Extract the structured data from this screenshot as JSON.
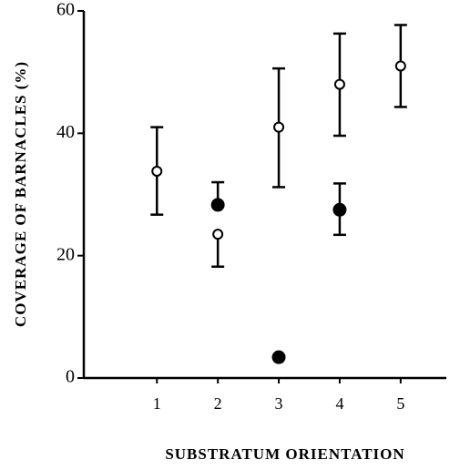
{
  "chart_data": {
    "type": "scatter",
    "xlabel": "SUBSTRATUM ORIENTATION",
    "ylabel": "COVERAGE OF BARNACLES (%)",
    "xlim": [
      -0.2,
      5.75
    ],
    "xticks": [
      1,
      2,
      3,
      4,
      5
    ],
    "ylim": [
      0,
      60
    ],
    "yticks": [
      0,
      20,
      40,
      60
    ],
    "series": [
      {
        "marker": "open",
        "color": "#000000",
        "x": [
          1,
          2,
          3,
          4,
          5
        ],
        "values": [
          33.8,
          23.5,
          41,
          48,
          51
        ],
        "error_plus": [
          7.2,
          null,
          9.6,
          8.3,
          6.7
        ],
        "error_minus": [
          7.1,
          5.3,
          9.8,
          8.4,
          6.7
        ]
      },
      {
        "marker": "filled",
        "color": "#000000",
        "x": [
          2,
          3,
          4
        ],
        "values": [
          28.3,
          3.4,
          27.5
        ],
        "error_plus": [
          3.7,
          null,
          4.3
        ],
        "error_minus": [
          null,
          null,
          4.1
        ]
      }
    ]
  }
}
